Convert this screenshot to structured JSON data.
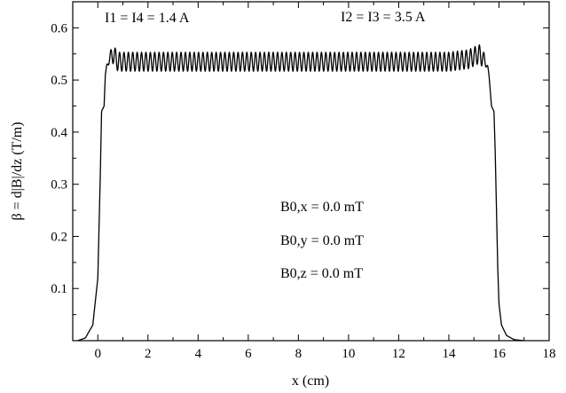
{
  "chart_data": {
    "type": "line",
    "title": "",
    "xlabel": "x (cm)",
    "ylabel": "β = d|B|/dz (T/m)",
    "xlim": [
      -1,
      18
    ],
    "ylim": [
      0,
      0.65
    ],
    "xticks": [
      0,
      2,
      4,
      6,
      8,
      10,
      12,
      14,
      16,
      18
    ],
    "yticks": [
      0.1,
      0.2,
      0.3,
      0.4,
      0.5,
      0.6
    ],
    "grid": false,
    "series": [
      {
        "x": [
          -0.8,
          -0.5,
          -0.2,
          0.0,
          0.05,
          0.1,
          0.15,
          0.2,
          0.25,
          0.3,
          0.35,
          0.45,
          0.6,
          0.8,
          1.0,
          2.0,
          4.0,
          6.0,
          8.0,
          10.0,
          12.0,
          14.0,
          14.8,
          15.2,
          15.4,
          15.55,
          15.6,
          15.7,
          15.75,
          15.8,
          15.85,
          15.9,
          15.95,
          16.0,
          16.1,
          16.3,
          16.6,
          17.0
        ],
        "y": [
          0.0,
          0.005,
          0.03,
          0.12,
          0.22,
          0.32,
          0.44,
          0.445,
          0.45,
          0.51,
          0.525,
          0.54,
          0.55,
          0.535,
          0.535,
          0.535,
          0.535,
          0.535,
          0.535,
          0.535,
          0.535,
          0.535,
          0.54,
          0.55,
          0.54,
          0.525,
          0.51,
          0.45,
          0.445,
          0.44,
          0.36,
          0.25,
          0.14,
          0.07,
          0.03,
          0.01,
          0.002,
          0.0
        ],
        "ripple_amplitude": 0.018,
        "ripple_x_range": [
          0.3,
          15.6
        ]
      }
    ],
    "annotations": {
      "i14": "I1 = I4 = 1.4 A",
      "i23": "I2 = I3 = 3.5 A",
      "b0x": "B0,x = 0.0 mT",
      "b0y": "B0,y = 0.0 mT",
      "b0z": "B0,z = 0.0 mT"
    }
  }
}
